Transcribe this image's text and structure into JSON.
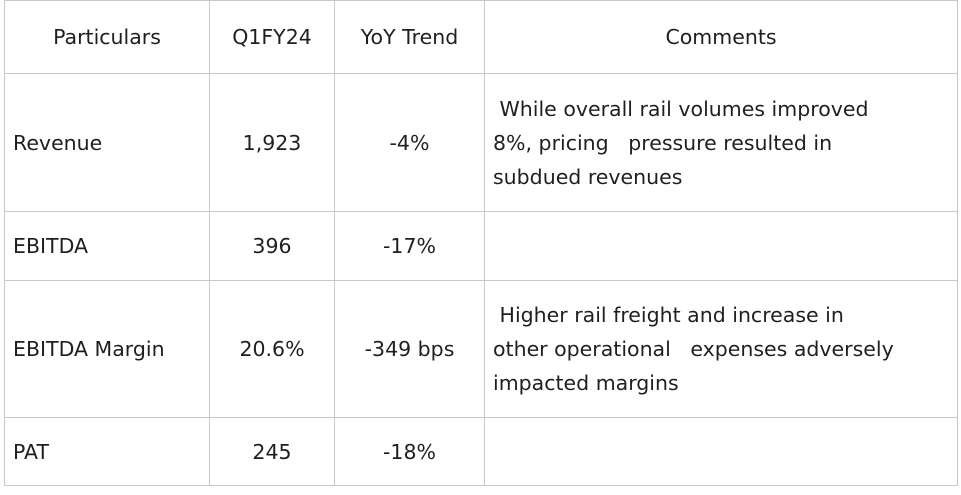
{
  "table": {
    "headers": [
      "Particulars",
      "Q1FY24",
      "YoY Trend",
      "Comments"
    ],
    "rows": [
      {
        "particular": "Revenue",
        "q1fy24": "1,923",
        "yoy": "-4%",
        "comment": " While overall rail volumes improved\n8%, pricing   pressure resulted in\nsubdued revenues"
      },
      {
        "particular": "EBITDA",
        "q1fy24": "396",
        "yoy": "-17%",
        "comment": ""
      },
      {
        "particular": "EBITDA Margin",
        "q1fy24": "20.6%",
        "yoy": "-349 bps",
        "comment": " Higher rail freight and increase in\nother operational   expenses adversely\nimpacted margins"
      },
      {
        "particular": "PAT",
        "q1fy24": "245",
        "yoy": "-18%",
        "comment": ""
      }
    ]
  }
}
